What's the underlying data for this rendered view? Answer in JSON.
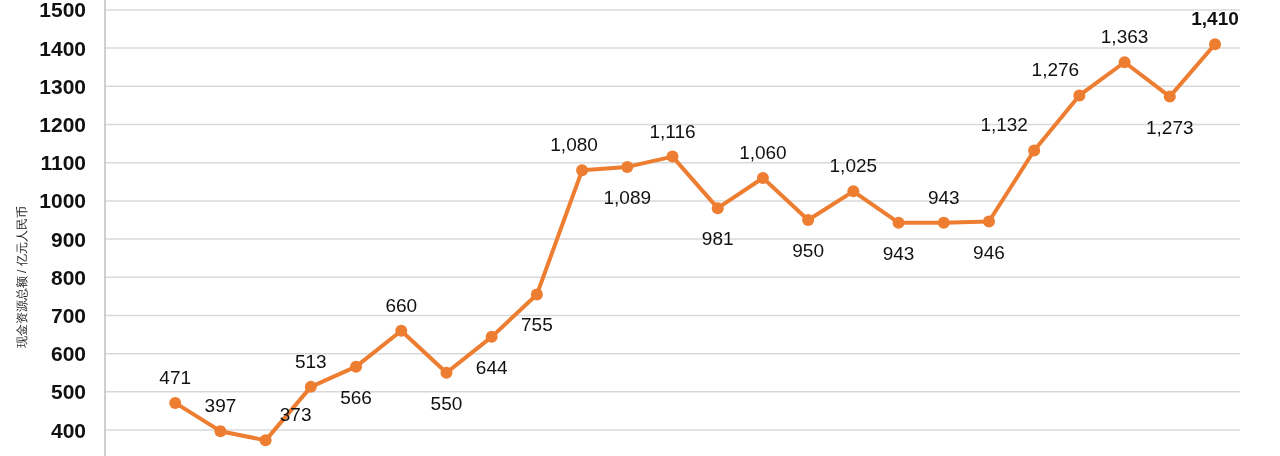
{
  "chart_data": {
    "type": "line",
    "ylabel": "现金资源总额 / 亿元人民币",
    "categories": [
      null,
      null,
      null,
      null,
      null,
      null,
      null,
      null,
      null,
      null,
      null,
      null,
      null,
      null,
      null,
      null,
      null,
      null,
      null,
      null,
      null,
      null,
      null,
      null,
      null
    ],
    "series": [
      {
        "color": "#ed7d31",
        "values": [
          null,
          471,
          397,
          373,
          513,
          566,
          660,
          550,
          644,
          755,
          1080,
          1089,
          1116,
          981,
          1060,
          950,
          1025,
          943,
          943,
          946,
          1132,
          1276,
          1363,
          1273,
          1410
        ],
        "value_labels": [
          null,
          "471",
          "397",
          "373",
          "513",
          "566",
          "660",
          "550",
          "644",
          "755",
          "1,080",
          "1,089",
          "1,116",
          "981",
          "1,060",
          "950",
          "1,025",
          "943",
          "943",
          "946",
          "1,132",
          "1,276",
          "1,363",
          "1,273",
          "**1,410**"
        ]
      }
    ],
    "ylim": [
      332,
      1526
    ],
    "yticks": [
      400,
      500,
      600,
      700,
      800,
      900,
      1000,
      1100,
      1200,
      1300,
      1400,
      1500
    ],
    "grid": "y",
    "marker": "circle",
    "tick_labels": "y",
    "line_style": "solid"
  }
}
